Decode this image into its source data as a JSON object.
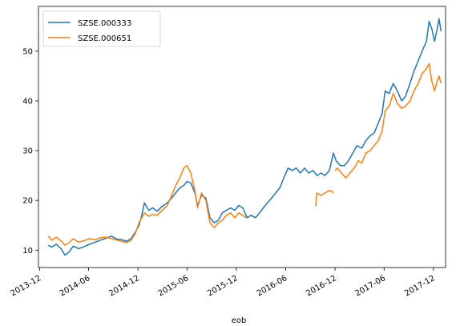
{
  "chart_data": {
    "type": "line",
    "title": "",
    "xlabel": "eob",
    "ylabel": "",
    "ylim": [
      6.5,
      59
    ],
    "xlim": [
      "2013-11-27",
      "2018-01-15"
    ],
    "grid": false,
    "legend_position": "top-left",
    "y_ticks": [
      10,
      20,
      30,
      40,
      50
    ],
    "x_ticks": [
      "2013-12",
      "2014-06",
      "2014-12",
      "2015-06",
      "2015-12",
      "2016-06",
      "2016-12",
      "2017-06",
      "2017-12"
    ],
    "series": [
      {
        "name": "SZSE.000333",
        "color": "#1f77b4",
        "points": [
          [
            "2014-01-02",
            11.0
          ],
          [
            "2014-01-15",
            10.6
          ],
          [
            "2014-02-01",
            11.2
          ],
          [
            "2014-02-20",
            10.2
          ],
          [
            "2014-03-05",
            9.0
          ],
          [
            "2014-03-20",
            9.6
          ],
          [
            "2014-04-05",
            10.8
          ],
          [
            "2014-04-25",
            10.3
          ],
          [
            "2014-05-15",
            10.7
          ],
          [
            "2014-06-05",
            11.2
          ],
          [
            "2014-06-25",
            11.6
          ],
          [
            "2014-07-15",
            12.0
          ],
          [
            "2014-08-05",
            12.4
          ],
          [
            "2014-08-25",
            12.8
          ],
          [
            "2014-09-15",
            12.2
          ],
          [
            "2014-10-01",
            12.1
          ],
          [
            "2014-10-20",
            11.8
          ],
          [
            "2014-11-05",
            12.3
          ],
          [
            "2014-11-20",
            13.5
          ],
          [
            "2014-12-05",
            15.0
          ],
          [
            "2014-12-15",
            17.0
          ],
          [
            "2014-12-25",
            19.5
          ],
          [
            "2015-01-10",
            18.0
          ],
          [
            "2015-01-25",
            18.5
          ],
          [
            "2015-02-10",
            17.8
          ],
          [
            "2015-03-01",
            18.8
          ],
          [
            "2015-03-20",
            19.5
          ],
          [
            "2015-04-05",
            20.5
          ],
          [
            "2015-04-20",
            21.5
          ],
          [
            "2015-05-05",
            22.5
          ],
          [
            "2015-05-20",
            23.0
          ],
          [
            "2015-06-01",
            23.8
          ],
          [
            "2015-06-15",
            23.5
          ],
          [
            "2015-06-30",
            21.5
          ],
          [
            "2015-07-10",
            19.0
          ],
          [
            "2015-07-25",
            21.0
          ],
          [
            "2015-08-10",
            20.5
          ],
          [
            "2015-08-25",
            16.5
          ],
          [
            "2015-09-10",
            15.5
          ],
          [
            "2015-09-25",
            16.0
          ],
          [
            "2015-10-10",
            17.5
          ],
          [
            "2015-10-25",
            18.0
          ],
          [
            "2015-11-10",
            18.5
          ],
          [
            "2015-11-25",
            18.0
          ],
          [
            "2015-12-10",
            19.0
          ],
          [
            "2015-12-25",
            18.5
          ],
          [
            "2016-01-10",
            16.5
          ],
          [
            "2016-01-25",
            17.0
          ],
          [
            "2016-02-10",
            16.5
          ],
          [
            "2016-02-25",
            17.5
          ],
          [
            "2016-03-10",
            18.5
          ],
          [
            "2016-03-25",
            19.5
          ],
          [
            "2016-04-10",
            20.5
          ],
          [
            "2016-04-25",
            21.5
          ],
          [
            "2016-05-10",
            22.5
          ],
          [
            "2016-05-25",
            24.5
          ],
          [
            "2016-06-10",
            26.5
          ],
          [
            "2016-06-25",
            26.0
          ],
          [
            "2016-07-10",
            26.5
          ],
          [
            "2016-07-25",
            25.5
          ],
          [
            "2016-08-10",
            26.5
          ],
          [
            "2016-08-25",
            25.5
          ],
          [
            "2016-09-10",
            26.0
          ],
          [
            "2016-09-25",
            25.0
          ],
          [
            "2016-10-10",
            25.5
          ],
          [
            "2016-10-25",
            25.0
          ],
          [
            "2016-11-10",
            26.0
          ],
          [
            "2016-11-25",
            29.5
          ],
          [
            "2016-12-05",
            28.0
          ],
          [
            "2016-12-20",
            27.0
          ],
          [
            "2017-01-05",
            27.0
          ],
          [
            "2017-01-20",
            28.0
          ],
          [
            "2017-02-05",
            29.5
          ],
          [
            "2017-02-20",
            31.0
          ],
          [
            "2017-03-10",
            30.5
          ],
          [
            "2017-03-25",
            32.0
          ],
          [
            "2017-04-10",
            33.0
          ],
          [
            "2017-04-25",
            33.5
          ],
          [
            "2017-05-10",
            35.5
          ],
          [
            "2017-05-25",
            37.5
          ],
          [
            "2017-06-05",
            42.0
          ],
          [
            "2017-06-20",
            41.5
          ],
          [
            "2017-07-05",
            43.5
          ],
          [
            "2017-07-20",
            42.0
          ],
          [
            "2017-08-05",
            40.0
          ],
          [
            "2017-08-20",
            41.0
          ],
          [
            "2017-09-05",
            43.5
          ],
          [
            "2017-09-20",
            46.0
          ],
          [
            "2017-10-05",
            48.0
          ],
          [
            "2017-10-20",
            50.0
          ],
          [
            "2017-11-05",
            52.0
          ],
          [
            "2017-11-15",
            56.0
          ],
          [
            "2017-11-25",
            54.5
          ],
          [
            "2017-12-05",
            52.0
          ],
          [
            "2017-12-15",
            54.5
          ],
          [
            "2017-12-22",
            56.5
          ],
          [
            "2017-12-29",
            54.0
          ]
        ]
      },
      {
        "name": "SZSE.000651",
        "color": "#ff7f0e",
        "points": [
          [
            "2014-01-02",
            12.8
          ],
          [
            "2014-01-15",
            12.0
          ],
          [
            "2014-02-01",
            12.6
          ],
          [
            "2014-02-20",
            11.8
          ],
          [
            "2014-03-05",
            11.0
          ],
          [
            "2014-03-20",
            11.5
          ],
          [
            "2014-04-05",
            12.3
          ],
          [
            "2014-04-25",
            11.6
          ],
          [
            "2014-05-15",
            11.9
          ],
          [
            "2014-06-05",
            12.3
          ],
          [
            "2014-06-25",
            12.1
          ],
          [
            "2014-07-15",
            12.5
          ],
          [
            "2014-08-05",
            12.6
          ],
          [
            "2014-08-25",
            12.3
          ],
          [
            "2014-09-15",
            12.0
          ],
          [
            "2014-10-01",
            11.8
          ],
          [
            "2014-10-20",
            11.5
          ],
          [
            "2014-11-05",
            12.0
          ],
          [
            "2014-11-20",
            13.2
          ],
          [
            "2014-12-05",
            15.5
          ],
          [
            "2014-12-15",
            16.5
          ],
          [
            "2014-12-25",
            17.5
          ],
          [
            "2015-01-10",
            16.8
          ],
          [
            "2015-01-25",
            17.2
          ],
          [
            "2015-02-10",
            17.0
          ],
          [
            "2015-03-01",
            18.0
          ],
          [
            "2015-03-20",
            19.0
          ],
          [
            "2015-04-05",
            21.0
          ],
          [
            "2015-04-20",
            23.0
          ],
          [
            "2015-05-05",
            24.5
          ],
          [
            "2015-05-20",
            26.5
          ],
          [
            "2015-06-01",
            27.0
          ],
          [
            "2015-06-15",
            25.5
          ],
          [
            "2015-06-30",
            22.0
          ],
          [
            "2015-07-10",
            18.5
          ],
          [
            "2015-07-25",
            21.5
          ],
          [
            "2015-08-10",
            20.0
          ],
          [
            "2015-08-25",
            15.5
          ],
          [
            "2015-09-10",
            14.5
          ],
          [
            "2015-09-25",
            15.5
          ],
          [
            "2015-10-10",
            16.0
          ],
          [
            "2015-10-25",
            17.0
          ],
          [
            "2015-11-10",
            17.5
          ],
          [
            "2015-11-25",
            16.5
          ],
          [
            "2015-12-10",
            17.5
          ],
          [
            "2015-12-25",
            17.0
          ],
          [
            "2016-01-05",
            16.5
          ],
          null,
          [
            "2016-09-20",
            18.8
          ],
          [
            "2016-09-25",
            21.5
          ],
          [
            "2016-10-10",
            21.0
          ],
          [
            "2016-10-25",
            21.5
          ],
          [
            "2016-11-10",
            22.0
          ],
          [
            "2016-11-20",
            21.8
          ],
          [
            "2016-11-25",
            21.5
          ],
          null,
          [
            "2016-12-01",
            26.0
          ],
          [
            "2016-12-10",
            26.5
          ],
          [
            "2016-12-25",
            25.5
          ],
          [
            "2017-01-10",
            24.5
          ],
          [
            "2017-01-25",
            25.5
          ],
          [
            "2017-02-10",
            26.5
          ],
          [
            "2017-02-25",
            28.0
          ],
          [
            "2017-03-10",
            27.5
          ],
          [
            "2017-03-25",
            29.5
          ],
          [
            "2017-04-10",
            30.0
          ],
          [
            "2017-04-25",
            31.0
          ],
          [
            "2017-05-10",
            32.0
          ],
          [
            "2017-05-25",
            34.0
          ],
          [
            "2017-06-05",
            38.0
          ],
          [
            "2017-06-20",
            39.0
          ],
          [
            "2017-07-05",
            41.5
          ],
          [
            "2017-07-20",
            39.5
          ],
          [
            "2017-08-05",
            38.5
          ],
          [
            "2017-08-20",
            39.0
          ],
          [
            "2017-09-05",
            40.0
          ],
          [
            "2017-09-20",
            42.0
          ],
          [
            "2017-10-05",
            43.5
          ],
          [
            "2017-10-20",
            45.5
          ],
          [
            "2017-11-05",
            46.5
          ],
          [
            "2017-11-15",
            47.5
          ],
          [
            "2017-11-25",
            44.0
          ],
          [
            "2017-12-05",
            42.0
          ],
          [
            "2017-12-15",
            44.0
          ],
          [
            "2017-12-22",
            45.0
          ],
          [
            "2017-12-29",
            43.5
          ]
        ]
      }
    ]
  }
}
